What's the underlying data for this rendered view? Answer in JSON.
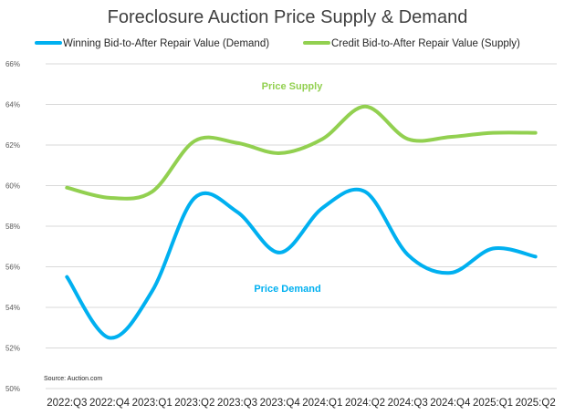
{
  "chart_data": {
    "type": "line",
    "title": "Foreclosure Auction Price Supply & Demand",
    "categories": [
      "2022:Q3",
      "2022:Q4",
      "2023:Q1",
      "2023:Q2",
      "2023:Q3",
      "2023:Q4",
      "2024:Q1",
      "2024:Q2",
      "2024:Q3",
      "2024:Q4",
      "2025:Q1",
      "2025:Q2"
    ],
    "series": [
      {
        "key": "demand",
        "name": "Winning Bid-to-After Repair Value (Demand)",
        "color": "#00b0f0",
        "values": [
          55.5,
          52.5,
          54.8,
          59.4,
          58.7,
          56.7,
          58.9,
          59.7,
          56.6,
          55.7,
          56.9,
          56.5
        ]
      },
      {
        "key": "supply",
        "name": "Credit Bid-to-After Repair Value (Supply)",
        "color": "#92d050",
        "values": [
          59.9,
          59.4,
          59.7,
          62.2,
          62.1,
          61.6,
          62.3,
          63.9,
          62.3,
          62.4,
          62.6,
          62.6
        ]
      }
    ],
    "ylim": [
      50,
      66
    ],
    "yticks": [
      50,
      52,
      54,
      56,
      58,
      60,
      62,
      64,
      66
    ],
    "ytick_labels": [
      "50%",
      "52%",
      "54%",
      "56%",
      "58%",
      "60%",
      "62%",
      "64%",
      "66%"
    ],
    "xlabel": "",
    "ylabel": "",
    "grid": true,
    "legend_position": "top",
    "annotations": {
      "supply_label": "Price Supply",
      "demand_label": "Price Demand"
    },
    "source": "Source: Auction.com"
  }
}
